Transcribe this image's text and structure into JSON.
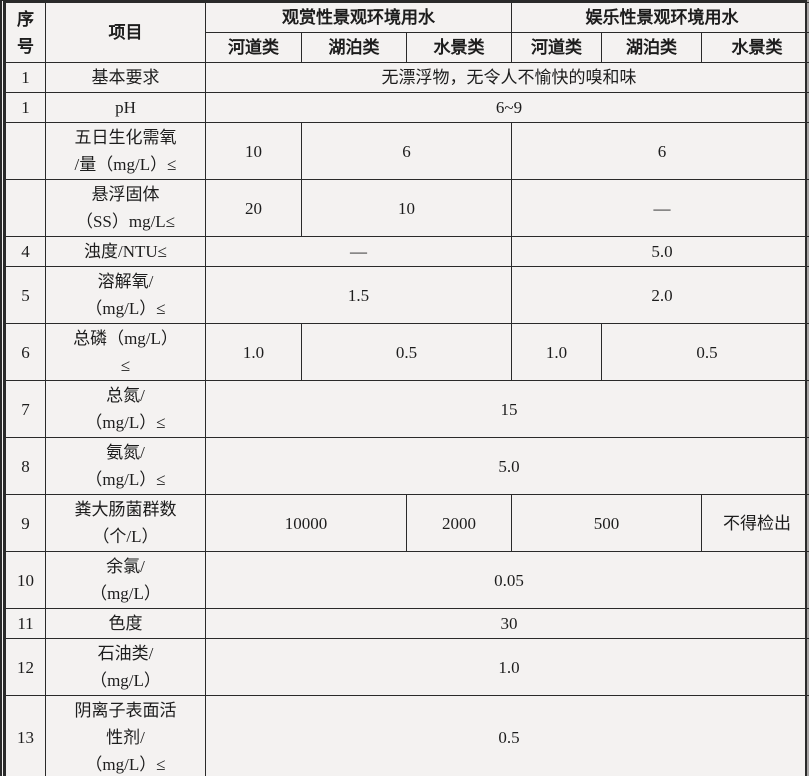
{
  "colors": {
    "ink": "#1d1d1d",
    "border": "#2a2a2a",
    "cell_bg": "#f4f2f1"
  },
  "table": {
    "col_headers": {
      "seq": "序\n号",
      "item": "项目",
      "group1": "观赏性景观环境用水",
      "group2": "娱乐性景观环境用水",
      "subcols": [
        "河道类",
        "湖泊类",
        "水景类",
        "河道类",
        "湖泊类",
        "水景类"
      ]
    },
    "rows": [
      {
        "num": "1",
        "label": "基本要求",
        "cells": [
          {
            "text": "无漂浮物，无令人不愉快的嗅和味",
            "span": 6
          }
        ]
      },
      {
        "num": "1",
        "label": "pH",
        "cells": [
          {
            "text": "6~9",
            "span": 6
          }
        ]
      },
      {
        "num": "",
        "label": "五日生化需氧\n/量（mg/L）≤",
        "cells": [
          {
            "text": "10",
            "span": 1
          },
          {
            "text": "6",
            "span": 2
          },
          {
            "text": "6",
            "span": 3
          }
        ]
      },
      {
        "num": "",
        "label": "悬浮固体\n（SS）mg/L≤",
        "cells": [
          {
            "text": "20",
            "span": 1
          },
          {
            "text": "10",
            "span": 2
          },
          {
            "text": "—",
            "span": 3
          }
        ]
      },
      {
        "num": "4",
        "label": "浊度/NTU≤",
        "cells": [
          {
            "text": "—",
            "span": 3
          },
          {
            "text": "5.0",
            "span": 3
          }
        ]
      },
      {
        "num": "5",
        "label": "溶解氧/\n（mg/L）≤",
        "cells": [
          {
            "text": "1.5",
            "span": 3
          },
          {
            "text": "2.0",
            "span": 3
          }
        ]
      },
      {
        "num": "6",
        "label": "总磷（mg/L）\n≤",
        "cells": [
          {
            "text": "1.0",
            "span": 1
          },
          {
            "text": "0.5",
            "span": 2
          },
          {
            "text": "1.0",
            "span": 1
          },
          {
            "text": "0.5",
            "span": 2
          }
        ]
      },
      {
        "num": "7",
        "label": "总氮/\n（mg/L）≤",
        "cells": [
          {
            "text": "15",
            "span": 6
          }
        ]
      },
      {
        "num": "8",
        "label": "氨氮/\n（mg/L）≤",
        "cells": [
          {
            "text": "5.0",
            "span": 6
          }
        ]
      },
      {
        "num": "9",
        "label": "粪大肠菌群数\n（个/L）",
        "cells": [
          {
            "text": "10000",
            "span": 2
          },
          {
            "text": "2000",
            "span": 1
          },
          {
            "text": "500",
            "span": 2
          },
          {
            "text": "不得检出",
            "span": 1
          }
        ]
      },
      {
        "num": "10",
        "label": "余氯/\n（mg/L）",
        "cells": [
          {
            "text": "0.05",
            "span": 6
          }
        ]
      },
      {
        "num": "11",
        "label": "色度",
        "cells": [
          {
            "text": "30",
            "span": 6
          }
        ]
      },
      {
        "num": "12",
        "label": "石油类/\n（mg/L）",
        "cells": [
          {
            "text": "1.0",
            "span": 6
          }
        ]
      },
      {
        "num": "13",
        "label": "阴离子表面活\n性剂/\n（mg/L）≤",
        "cells": [
          {
            "text": "0.5",
            "span": 6
          }
        ]
      }
    ]
  }
}
